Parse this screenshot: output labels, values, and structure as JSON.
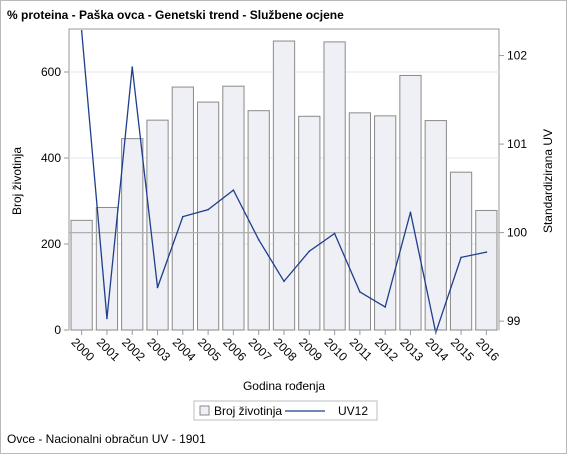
{
  "title": "% proteina - Paška ovca - Genetski trend - Službene ocjene",
  "footnote": "Ovce - Nacionalni obračun UV - 1901",
  "colors": {
    "bar_fill": "#eef0f5",
    "bar_stroke": "#8a8a8a",
    "line": "#1f3e8c",
    "reference_line": "#aeb0b0",
    "gridline": "#e6e6e6",
    "axis": "#9a9a9a"
  },
  "chart_data": {
    "type": "bar",
    "categories": [
      "2000",
      "2001",
      "2002",
      "2003",
      "2004",
      "2005",
      "2006",
      "2007",
      "2008",
      "2009",
      "2010",
      "2011",
      "2012",
      "2013",
      "2014",
      "2015",
      "2016"
    ],
    "xlabel": "Godina rođenja",
    "ylabel": "Broj životinja",
    "y2label": "Standardizirana UV",
    "ylim": [
      0,
      700
    ],
    "yticks": [
      0,
      200,
      400,
      600
    ],
    "y2lim": [
      98.9,
      102.3
    ],
    "y2ticks": [
      99,
      100,
      101,
      102
    ],
    "grid": true,
    "legend_position": "bottom-center",
    "series": [
      {
        "name": "Broj životinja",
        "kind": "bar",
        "values": [
          255,
          285,
          445,
          488,
          565,
          530,
          567,
          510,
          672,
          497,
          670,
          505,
          498,
          592,
          487,
          367,
          278
        ]
      },
      {
        "name": "UV12",
        "kind": "line",
        "axis": "secondary",
        "values": [
          102.28,
          99.03,
          101.87,
          99.38,
          100.18,
          100.26,
          100.48,
          99.92,
          99.45,
          99.79,
          99.99,
          99.33,
          99.16,
          100.23,
          98.87,
          99.72,
          99.78
        ]
      }
    ],
    "reference_lines": [
      {
        "axis": "secondary",
        "value": 100
      }
    ]
  }
}
